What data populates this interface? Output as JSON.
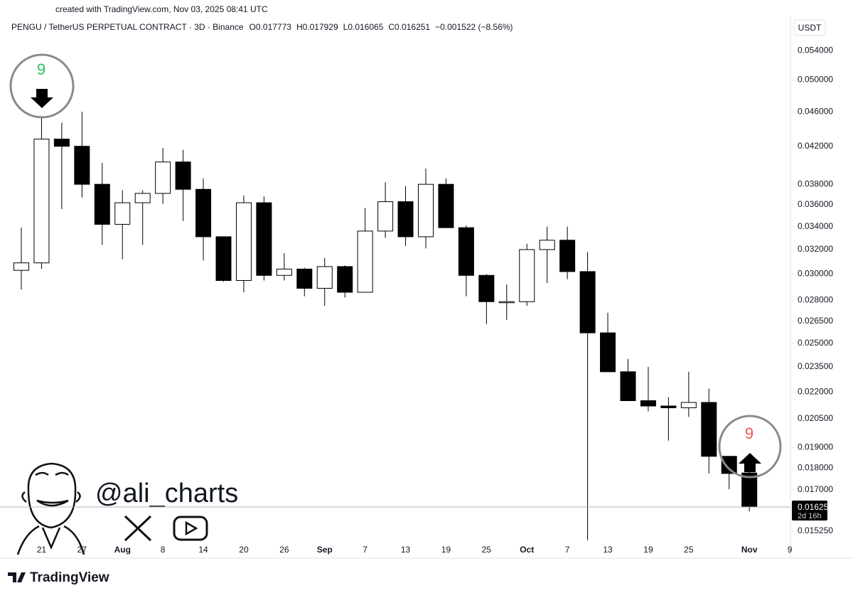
{
  "chart_data": {
    "type": "candlestick",
    "created": "created with TradingView.com, Nov 03, 2025 08:41 UTC",
    "title": "PENGU / TetherUS PERPETUAL CONTRACT · 3D · Binance",
    "ohlc_legend": [
      "O0.017773",
      "H0.017929",
      "L0.016065",
      "C0.016251",
      "−0.001522 (−8.56%)"
    ],
    "currency": "USDT",
    "log_scale": true,
    "up_color": "#ffffff",
    "down_color": "#000000",
    "categories": [
      null,
      "21",
      null,
      "27",
      null,
      "Aug",
      null,
      "8",
      null,
      "14",
      null,
      "20",
      null,
      "26",
      null,
      "Sep",
      null,
      "7",
      null,
      "13",
      null,
      "19",
      null,
      "25",
      null,
      "Oct",
      null,
      "7",
      null,
      "13",
      null,
      "19",
      null,
      "25",
      null,
      null,
      "Nov",
      null,
      "9"
    ],
    "open": [
      0.0303,
      0.0309,
      0.0428,
      0.042,
      0.038,
      0.0342,
      0.0362,
      0.0371,
      0.0403,
      0.0375,
      0.0331,
      0.0295,
      0.0362,
      0.0299,
      0.0304,
      0.0289,
      0.0306,
      0.0286,
      0.0336,
      0.0363,
      0.0331,
      0.038,
      0.0339,
      0.0299,
      0.0279,
      0.0279,
      0.032,
      0.0328,
      0.0302,
      0.0257,
      0.0232,
      0.0215,
      0.0212,
      0.0211,
      0.0214,
      0.01857,
      0.017773,
      null,
      null
    ],
    "high": [
      0.0339,
      0.0454,
      0.0447,
      0.046,
      0.0402,
      0.0374,
      0.0374,
      0.0418,
      0.0416,
      0.0386,
      0.0331,
      0.0369,
      0.0368,
      0.0317,
      0.0305,
      0.0313,
      0.0307,
      0.0357,
      0.0382,
      0.0378,
      0.0396,
      0.0386,
      0.0341,
      0.03,
      0.0292,
      0.0325,
      0.034,
      0.034,
      0.0318,
      0.0271,
      0.024,
      0.0235,
      0.0217,
      0.0232,
      0.0222,
      0.01857,
      0.017929,
      null,
      null
    ],
    "low": [
      0.0288,
      0.0304,
      0.0356,
      0.0367,
      0.0324,
      0.0312,
      0.0324,
      0.0361,
      0.0345,
      0.0311,
      0.0294,
      0.0286,
      0.0295,
      0.0295,
      0.0283,
      0.0276,
      0.0282,
      0.0286,
      0.033,
      0.0323,
      0.0321,
      0.0339,
      0.0283,
      0.0263,
      0.0266,
      0.0276,
      0.0293,
      0.0296,
      0.01489,
      0.0232,
      0.0215,
      0.0209,
      0.01935,
      0.0206,
      0.01775,
      0.01703,
      0.016065,
      null,
      null
    ],
    "close": [
      0.0309,
      0.0428,
      0.042,
      0.038,
      0.0342,
      0.0362,
      0.0371,
      0.0403,
      0.0375,
      0.0331,
      0.0295,
      0.0362,
      0.0299,
      0.0304,
      0.0289,
      0.0306,
      0.0286,
      0.0336,
      0.0363,
      0.0331,
      0.038,
      0.0339,
      0.0299,
      0.0279,
      0.0279,
      0.032,
      0.0328,
      0.0302,
      0.0257,
      0.0232,
      0.0215,
      0.0212,
      0.0211,
      0.0214,
      0.01857,
      0.01775,
      0.016251,
      null,
      null
    ],
    "ylim": [
      0.0148,
      0.056
    ],
    "yticks": [
      {
        "value": 0.054,
        "label": "0.054000"
      },
      {
        "value": 0.05,
        "label": "0.050000"
      },
      {
        "value": 0.046,
        "label": "0.046000"
      },
      {
        "value": 0.042,
        "label": "0.042000"
      },
      {
        "value": 0.038,
        "label": "0.038000"
      },
      {
        "value": 0.036,
        "label": "0.036000"
      },
      {
        "value": 0.034,
        "label": "0.034000"
      },
      {
        "value": 0.032,
        "label": "0.032000"
      },
      {
        "value": 0.03,
        "label": "0.030000"
      },
      {
        "value": 0.028,
        "label": "0.028000"
      },
      {
        "value": 0.0265,
        "label": "0.026500"
      },
      {
        "value": 0.025,
        "label": "0.025000"
      },
      {
        "value": 0.0235,
        "label": "0.023500"
      },
      {
        "value": 0.022,
        "label": "0.022000"
      },
      {
        "value": 0.0205,
        "label": "0.020500"
      },
      {
        "value": 0.019,
        "label": "0.019000"
      },
      {
        "value": 0.018,
        "label": "0.018000"
      },
      {
        "value": 0.017,
        "label": "0.017000"
      },
      {
        "value": 0.01525,
        "label": "0.015250"
      }
    ],
    "last_price": 0.016251,
    "countdown": "2d 16h",
    "annotations": [
      {
        "text": "9",
        "color": "#22c55e",
        "direction": "down"
      },
      {
        "text": "9",
        "color": "#ef5350",
        "direction": "up"
      }
    ],
    "watermark": "@ali_charts",
    "brand": "TradingView"
  }
}
